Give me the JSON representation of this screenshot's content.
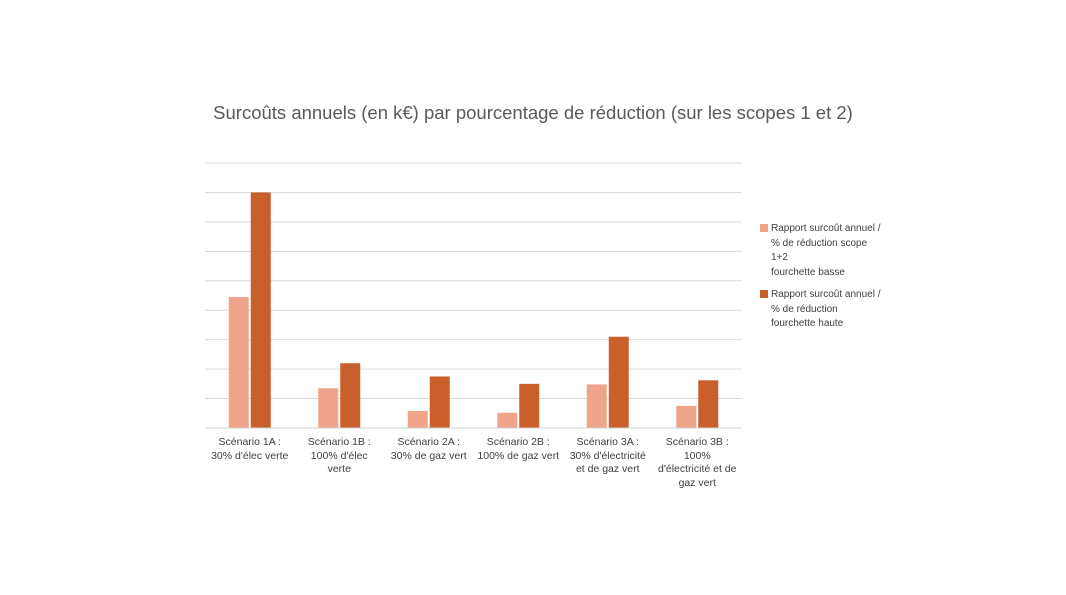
{
  "chart_data": {
    "type": "bar",
    "title": "Surcoûts annuels (en k€) par pourcentage de réduction (sur les scopes 1 et 2)",
    "categories": [
      "Scénario 1A :\n30% d'élec verte",
      "Scénario 1B :\n100% d'élec\nverte",
      "Scénario 2A :\n30% de gaz vert",
      "Scénario 2B :\n100% de gaz vert",
      "Scénario 3A :\n30% d'électricité\net de gaz vert",
      "Scénario 3B :\n100%\nd'électricité et de\ngaz vert"
    ],
    "series": [
      {
        "name": "Rapport surcoût annuel /\n% de réduction scope\n1+2\nfourchette basse",
        "color": "#f0a58a",
        "values": [
          4.45,
          1.35,
          0.58,
          0.52,
          1.48,
          0.75
        ]
      },
      {
        "name": "Rapport surcoût annuel /\n% de réduction\nfourchette haute",
        "color": "#c9602c",
        "values": [
          8.0,
          2.2,
          1.75,
          1.5,
          3.1,
          1.62
        ]
      }
    ],
    "ylim": [
      0,
      9
    ],
    "grid": true,
    "y_axis_labels_shown": false,
    "legend_position": "right"
  },
  "colors": {
    "gridline": "#d9d9d9",
    "title": "#595959",
    "text": "#404040"
  }
}
